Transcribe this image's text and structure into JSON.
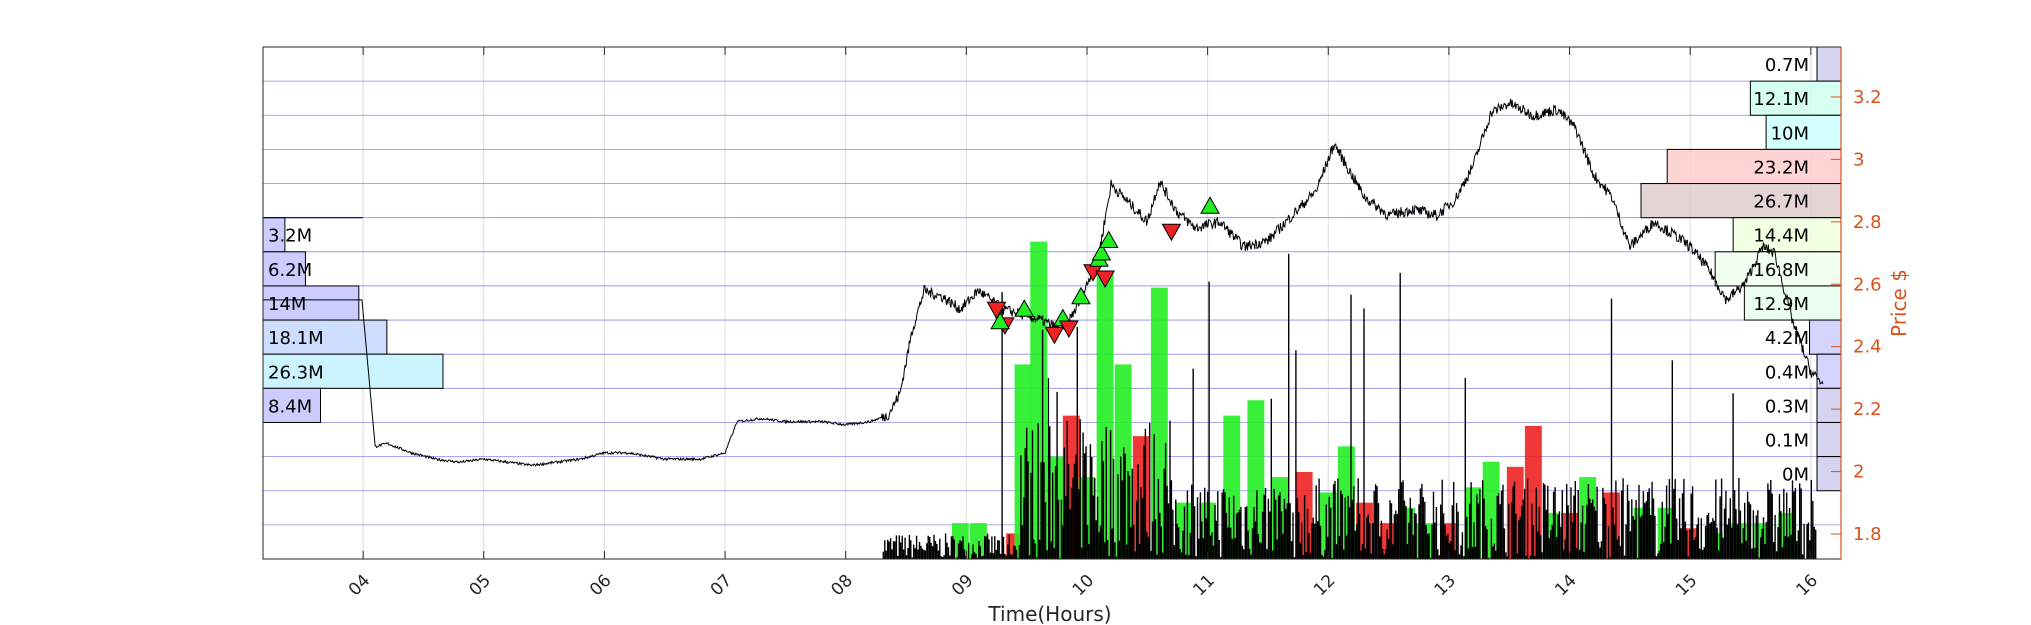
{
  "chart_data": {
    "type": "line",
    "xlabel": "Time(Hours)",
    "ylabel_right": "Price $",
    "x_ticks": [
      "04",
      "05",
      "06",
      "07",
      "08",
      "09",
      "10",
      "11",
      "12",
      "13",
      "14",
      "15",
      "16"
    ],
    "x_range": [
      3.17,
      16.25
    ],
    "y_range": [
      1.72,
      3.36
    ],
    "y_ticks": [
      "1.8",
      "2",
      "2.2",
      "2.4",
      "2.6",
      "2.8",
      "3",
      "3.2"
    ],
    "grid": true,
    "price_series": {
      "name": "",
      "x": [
        3.17,
        3.5,
        3.99,
        4.1,
        4.2,
        4.4,
        4.6,
        4.8,
        5.0,
        5.2,
        5.4,
        5.6,
        5.8,
        6.0,
        6.2,
        6.5,
        6.8,
        7.0,
        7.1,
        7.3,
        7.5,
        7.8,
        8.0,
        8.2,
        8.35,
        8.45,
        8.55,
        8.65,
        8.8,
        8.95,
        9.1,
        9.3,
        9.5,
        9.65,
        9.8,
        9.95,
        10.1,
        10.2,
        10.35,
        10.5,
        10.6,
        10.75,
        10.9,
        11.1,
        11.3,
        11.5,
        11.7,
        11.9,
        12.05,
        12.15,
        12.3,
        12.5,
        12.7,
        12.9,
        13.05,
        13.2,
        13.35,
        13.5,
        13.7,
        13.9,
        14.05,
        14.2,
        14.35,
        14.5,
        14.7,
        14.9,
        15.0,
        15.15,
        15.3,
        15.45,
        15.6,
        15.7,
        15.85,
        16.0,
        16.1
      ],
      "y": [
        2.55,
        2.55,
        2.55,
        2.08,
        2.09,
        2.06,
        2.04,
        2.03,
        2.04,
        2.03,
        2.02,
        2.03,
        2.04,
        2.06,
        2.06,
        2.04,
        2.04,
        2.06,
        2.16,
        2.17,
        2.16,
        2.16,
        2.15,
        2.16,
        2.18,
        2.25,
        2.45,
        2.58,
        2.56,
        2.52,
        2.58,
        2.52,
        2.5,
        2.48,
        2.45,
        2.55,
        2.7,
        2.92,
        2.86,
        2.8,
        2.93,
        2.83,
        2.78,
        2.8,
        2.72,
        2.74,
        2.82,
        2.9,
        3.05,
        2.98,
        2.88,
        2.82,
        2.84,
        2.82,
        2.87,
        2.98,
        3.15,
        3.18,
        3.14,
        3.16,
        3.1,
        2.95,
        2.88,
        2.72,
        2.8,
        2.75,
        2.72,
        2.65,
        2.55,
        2.6,
        2.72,
        2.7,
        2.48,
        2.32,
        2.28
      ]
    },
    "volume_bars": {
      "x": [
        8.95,
        9.1,
        9.4,
        9.47,
        9.6,
        9.75,
        9.87,
        10.0,
        10.15,
        10.3,
        10.45,
        10.6,
        10.8,
        11.0,
        11.2,
        11.4,
        11.6,
        11.8,
        12.0,
        12.15,
        12.3,
        12.5,
        12.65,
        12.8,
        13.0,
        13.2,
        13.35,
        13.55,
        13.7,
        13.85,
        14.0,
        14.15,
        14.35,
        14.6,
        14.8,
        15.0,
        15.2,
        15.4,
        15.6,
        15.8
      ],
      "values": [
        0.07,
        0.07,
        0.05,
        0.38,
        0.62,
        0.2,
        0.28,
        0.16,
        0.56,
        0.38,
        0.24,
        0.53,
        0.11,
        0.11,
        0.28,
        0.31,
        0.16,
        0.17,
        0.13,
        0.22,
        0.11,
        0.07,
        0.1,
        0.07,
        0.07,
        0.14,
        0.19,
        0.18,
        0.26,
        0.09,
        0.09,
        0.16,
        0.13,
        0.1,
        0.1,
        0.06,
        0.05,
        0.07,
        0.07,
        0.09
      ],
      "colors": [
        "#22ee22",
        "#22ee22",
        "#ee2222",
        "#22ee22",
        "#22ee22",
        "#22ee22",
        "#ee2222",
        "#22ee22",
        "#22ee22",
        "#22ee22",
        "#ee2222",
        "#22ee22",
        "#22ee22",
        "#22ee22",
        "#22ee22",
        "#22ee22",
        "#22ee22",
        "#ee2222",
        "#22ee22",
        "#22ee22",
        "#ee2222",
        "#ee2222",
        "#22ee22",
        "#22ee22",
        "#ee2222",
        "#22ee22",
        "#22ee22",
        "#ee2222",
        "#ee2222",
        "#22ee22",
        "#ee2222",
        "#22ee22",
        "#ee2222",
        "#22ee22",
        "#22ee22",
        "#ee2222",
        "#22ee22",
        "#22ee22",
        "#22ee22",
        "#22ee22"
      ]
    },
    "signals": [
      {
        "type": "sell",
        "x": 9.25,
        "y": 2.52
      },
      {
        "type": "sell",
        "x": 9.32,
        "y": 2.47
      },
      {
        "type": "buy",
        "x": 9.28,
        "y": 2.48
      },
      {
        "type": "buy",
        "x": 9.48,
        "y": 2.52
      },
      {
        "type": "sell",
        "x": 9.73,
        "y": 2.44
      },
      {
        "type": "buy",
        "x": 9.8,
        "y": 2.49
      },
      {
        "type": "sell",
        "x": 9.85,
        "y": 2.46
      },
      {
        "type": "buy",
        "x": 9.95,
        "y": 2.56
      },
      {
        "type": "sell",
        "x": 10.05,
        "y": 2.64
      },
      {
        "type": "buy",
        "x": 10.1,
        "y": 2.68
      },
      {
        "type": "sell",
        "x": 10.15,
        "y": 2.62
      },
      {
        "type": "buy",
        "x": 10.12,
        "y": 2.7
      },
      {
        "type": "buy",
        "x": 10.18,
        "y": 2.74
      },
      {
        "type": "sell",
        "x": 10.7,
        "y": 2.77
      },
      {
        "type": "buy",
        "x": 11.02,
        "y": 2.85
      }
    ],
    "left_profile": [
      {
        "label": "3.2M",
        "value": 3.2,
        "color": "#ccccff"
      },
      {
        "label": "6.2M",
        "value": 6.2,
        "color": "#ccccff"
      },
      {
        "label": "14M",
        "value": 14,
        "color": "#ccccff"
      },
      {
        "label": "18.1M",
        "value": 18.1,
        "color": "#ccddff"
      },
      {
        "label": "26.3M",
        "value": 26.3,
        "color": "#ccf4ff"
      },
      {
        "label": "8.4M",
        "value": 8.4,
        "color": "#ccccff"
      }
    ],
    "right_profile": [
      {
        "label": "0.7M",
        "value": 0.7,
        "color": "#ccccee"
      },
      {
        "label": "12.1M",
        "value": 12.1,
        "color": "#ccffee"
      },
      {
        "label": "10M",
        "value": 10,
        "color": "#ccffff"
      },
      {
        "label": "23.2M",
        "value": 23.2,
        "color": "#ffcccc"
      },
      {
        "label": "26.7M",
        "value": 26.7,
        "color": "#e0cccc"
      },
      {
        "label": "14.4M",
        "value": 14.4,
        "color": "#eeffdd"
      },
      {
        "label": "16.8M",
        "value": 16.8,
        "color": "#eeffee"
      },
      {
        "label": "12.9M",
        "value": 12.9,
        "color": "#e6ffee"
      },
      {
        "label": "4.2M",
        "value": 4.2,
        "color": "#ccccff"
      },
      {
        "label": "0.4M",
        "value": 0.4,
        "color": "#ccccff"
      },
      {
        "label": "0.3M",
        "value": 0.3,
        "color": "#ccccee"
      },
      {
        "label": "0.1M",
        "value": 0.1,
        "color": "#ccccee"
      },
      {
        "label": "0M",
        "value": 0,
        "color": "#ccccee"
      }
    ],
    "colors": {
      "price_line": "#000000",
      "buy_signal": "#22ee22",
      "sell_signal": "#ee2222",
      "right_axis": "#D95319",
      "band_line": "#6666dd",
      "grid": "#dddddd"
    }
  }
}
